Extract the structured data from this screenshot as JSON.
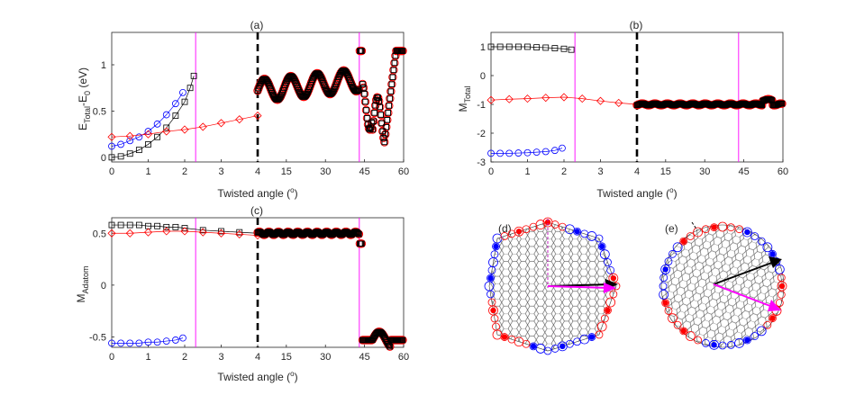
{
  "chart_data": [
    {
      "id": "a",
      "type": "scatter",
      "title": "(a)",
      "xlabel": "Twisted angle (",
      "xlabel_unit": "o",
      "ylabel_main": "E",
      "ylabel_sub1": "Total",
      "ylabel_mid": "-E",
      "ylabel_sub2": "0",
      "ylabel_tail": " (eV)",
      "x_tick_labels": [
        "0",
        "1",
        "2",
        "3",
        "4",
        "15",
        "30",
        "45",
        "60"
      ],
      "y_ticks": [
        0,
        0.5,
        1
      ],
      "y_tick_labels": [
        "0",
        "0.5",
        "1"
      ],
      "ylim": [
        -0.05,
        1.35
      ],
      "x_break_at": 4,
      "magenta_lines_x": [
        2.3,
        43
      ],
      "series": [
        {
          "name": "black squares",
          "marker": "square",
          "color": "#000000",
          "x": [
            0,
            0.25,
            0.5,
            0.75,
            1,
            1.25,
            1.5,
            1.75,
            2,
            2.15,
            2.25
          ],
          "y": [
            0,
            0.01,
            0.04,
            0.08,
            0.14,
            0.22,
            0.32,
            0.45,
            0.6,
            0.75,
            0.88
          ]
        },
        {
          "name": "blue circles",
          "marker": "circle",
          "color": "#0000ff",
          "x": [
            0,
            0.25,
            0.5,
            0.75,
            1,
            1.25,
            1.5,
            1.75,
            1.95
          ],
          "y": [
            0.12,
            0.14,
            0.18,
            0.22,
            0.28,
            0.36,
            0.46,
            0.58,
            0.7
          ]
        },
        {
          "name": "red diamonds",
          "marker": "diamond",
          "color": "#ff0000",
          "x": [
            0,
            0.5,
            1,
            1.5,
            2,
            2.5,
            3,
            3.5,
            4
          ],
          "y": [
            0.22,
            0.23,
            0.25,
            0.28,
            0.3,
            0.33,
            0.37,
            0.41,
            0.45
          ]
        }
      ]
    },
    {
      "id": "b",
      "type": "scatter",
      "title": "(b)",
      "xlabel": "Twisted angle (",
      "xlabel_unit": "o",
      "ylabel_main": "M",
      "ylabel_sub1": "Total",
      "x_tick_labels": [
        "0",
        "1",
        "2",
        "3",
        "4",
        "15",
        "30",
        "45",
        "60"
      ],
      "y_ticks": [
        -3,
        -2,
        -1,
        0,
        1
      ],
      "y_tick_labels": [
        "-3",
        "-2",
        "-1",
        "0",
        "1"
      ],
      "ylim": [
        -3,
        1.5
      ],
      "x_break_at": 4,
      "magenta_lines_x": [
        2.3,
        43
      ],
      "series": [
        {
          "name": "black squares",
          "marker": "square",
          "color": "#000000",
          "x": [
            0,
            0.25,
            0.5,
            0.75,
            1,
            1.25,
            1.5,
            1.75,
            2,
            2.2
          ],
          "y": [
            1,
            1,
            1,
            1,
            1,
            0.98,
            0.97,
            0.95,
            0.93,
            0.9
          ]
        },
        {
          "name": "blue circles",
          "marker": "circle",
          "color": "#0000ff",
          "x": [
            0,
            0.25,
            0.5,
            0.75,
            1,
            1.25,
            1.5,
            1.75,
            1.95
          ],
          "y": [
            -2.7,
            -2.7,
            -2.7,
            -2.69,
            -2.68,
            -2.66,
            -2.64,
            -2.6,
            -2.52
          ]
        },
        {
          "name": "red diamonds",
          "marker": "diamond",
          "color": "#ff0000",
          "x": [
            0,
            0.5,
            1,
            1.5,
            2,
            2.5,
            3,
            3.5,
            4
          ],
          "y": [
            -0.85,
            -0.82,
            -0.8,
            -0.77,
            -0.75,
            -0.8,
            -0.88,
            -0.95,
            -1.0
          ]
        }
      ]
    },
    {
      "id": "c",
      "type": "scatter",
      "title": "(c)",
      "xlabel": "Twisted angle (",
      "xlabel_unit": "o",
      "ylabel_main": "M",
      "ylabel_sub1": "Adatom",
      "x_tick_labels": [
        "0",
        "1",
        "2",
        "3",
        "4",
        "15",
        "30",
        "45",
        "60"
      ],
      "y_ticks": [
        -0.5,
        0,
        0.5
      ],
      "y_tick_labels": [
        "-0.5",
        "0",
        "0.5"
      ],
      "ylim": [
        -0.6,
        0.65
      ],
      "x_break_at": 4,
      "magenta_lines_x": [
        2.3,
        43
      ],
      "series": [
        {
          "name": "black squares",
          "marker": "square",
          "color": "#000000",
          "x": [
            0,
            0.25,
            0.5,
            0.75,
            1,
            1.25,
            1.5,
            1.75,
            2,
            2.5,
            3,
            3.5,
            4
          ],
          "y": [
            0.58,
            0.58,
            0.58,
            0.58,
            0.57,
            0.57,
            0.56,
            0.56,
            0.55,
            0.53,
            0.52,
            0.51,
            0.5
          ]
        },
        {
          "name": "blue circles",
          "marker": "circle",
          "color": "#0000ff",
          "x": [
            0,
            0.25,
            0.5,
            0.75,
            1,
            1.25,
            1.5,
            1.75,
            1.95
          ],
          "y": [
            -0.56,
            -0.56,
            -0.56,
            -0.56,
            -0.55,
            -0.55,
            -0.54,
            -0.53,
            -0.51
          ]
        },
        {
          "name": "red diamonds",
          "marker": "diamond",
          "color": "#ff0000",
          "x": [
            0,
            0.5,
            1,
            1.5,
            2,
            2.5,
            3,
            3.5,
            4
          ],
          "y": [
            0.5,
            0.5,
            0.51,
            0.52,
            0.52,
            0.51,
            0.5,
            0.49,
            0.48
          ]
        }
      ]
    }
  ],
  "structure_panels": [
    {
      "id": "d",
      "label": "(d)"
    },
    {
      "id": "e",
      "label": "(e)"
    }
  ]
}
